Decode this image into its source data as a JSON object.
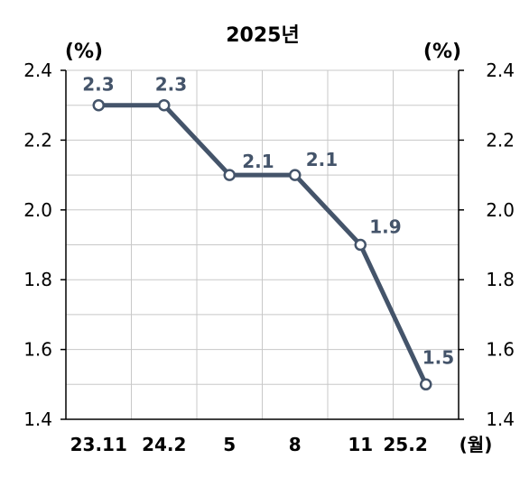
{
  "chart_data": {
    "type": "line",
    "title": "2025년",
    "y_unit_left": "(%)",
    "y_unit_right": "(%)",
    "x_unit": "(월)",
    "categories": [
      "23.11",
      "24.2",
      "5",
      "8",
      "11",
      "25.2"
    ],
    "series": [
      {
        "values": [
          2.3,
          2.3,
          2.1,
          2.1,
          1.9,
          1.5
        ],
        "color": "#44546A"
      }
    ],
    "data_labels": [
      "2.3",
      "2.3",
      "2.1",
      "2.1",
      "1.9",
      "1.5"
    ],
    "ylim": [
      1.4,
      2.4
    ],
    "yticks": [
      "1.4",
      "1.6",
      "1.8",
      "2.0",
      "2.2",
      "2.4"
    ],
    "grid": true,
    "grid_color": "#C8C8C8",
    "label_color": "#44546A"
  }
}
